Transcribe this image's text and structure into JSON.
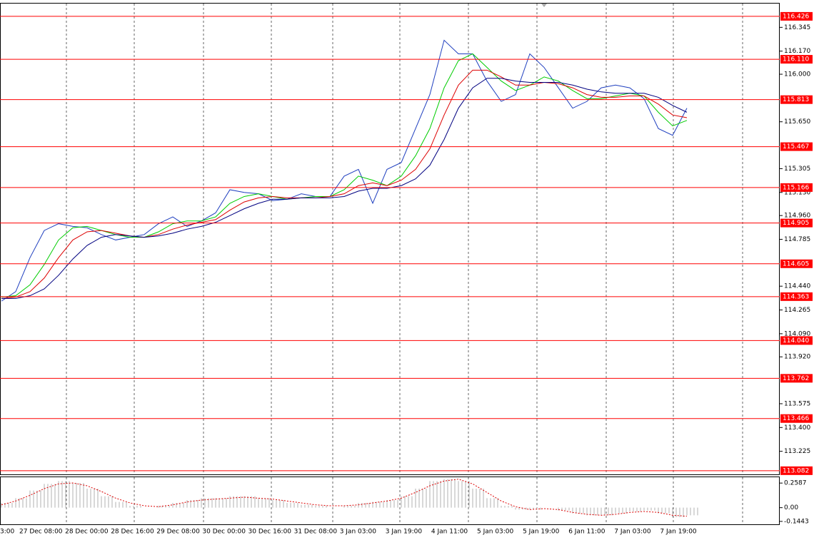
{
  "chart_data": [
    {
      "type": "line",
      "ylim": [
        113.055,
        116.52
      ],
      "yticks": [
        116.345,
        {
          "value": 116.17,
          "label": "116.170"
        },
        {
          "value": 116.0,
          "label": "116.000"
        },
        {
          "value": 115.65,
          "label": "115.650"
        },
        115.305,
        {
          "value": 115.13,
          "label": "115.130"
        },
        {
          "value": 114.96,
          "label": "114.960"
        },
        114.785,
        {
          "value": 114.44,
          "label": "114.440"
        },
        114.265,
        {
          "value": 114.09,
          "label": "114.090"
        },
        {
          "value": 113.92,
          "label": "113.920"
        },
        113.575,
        {
          "value": 113.4,
          "label": "113.400"
        },
        113.225
      ],
      "levels": [
        116.426,
        {
          "value": 116.11,
          "label": "116.110"
        },
        115.813,
        115.467,
        115.166,
        114.905,
        114.605,
        114.363,
        {
          "value": 114.04,
          "label": "114.040"
        },
        113.762,
        113.466,
        113.082
      ],
      "level_color": "#ff0000",
      "xticks": [
        "3:00",
        "27 Dec 08:00",
        "28 Dec 00:00",
        "28 Dec 16:00",
        "29 Dec 08:00",
        "30 Dec 00:00",
        "30 Dec 16:00",
        "31 Dec 08:00",
        "3 Jan 03:00",
        "3 Jan 19:00",
        "4 Jan 11:00",
        "5 Jan 03:00",
        "5 Jan 19:00",
        "6 Jan 11:00",
        "7 Jan 03:00",
        "7 Jan 19:00"
      ],
      "grid": true,
      "series": [
        {
          "color": "#1f3fbf",
          "values": [
            114.33,
            114.4,
            114.65,
            114.85,
            114.9,
            114.88,
            114.87,
            114.82,
            114.78,
            114.8,
            114.82,
            114.9,
            114.95,
            114.88,
            114.92,
            114.98,
            115.15,
            115.13,
            115.12,
            115.07,
            115.08,
            115.12,
            115.1,
            115.1,
            115.25,
            115.3,
            115.05,
            115.3,
            115.35,
            115.6,
            115.85,
            116.25,
            116.15,
            116.15,
            115.95,
            115.8,
            115.85,
            116.15,
            116.05,
            115.9,
            115.75,
            115.8,
            115.9,
            115.92,
            115.9,
            115.82,
            115.6,
            115.55,
            115.75
          ]
        },
        {
          "color": "#00cc00",
          "values": [
            114.36,
            114.37,
            114.45,
            114.6,
            114.78,
            114.87,
            114.88,
            114.85,
            114.82,
            114.8,
            114.8,
            114.84,
            114.9,
            114.92,
            114.92,
            114.95,
            115.05,
            115.1,
            115.12,
            115.1,
            115.08,
            115.09,
            115.1,
            115.1,
            115.15,
            115.25,
            115.22,
            115.18,
            115.25,
            115.4,
            115.6,
            115.9,
            116.1,
            116.15,
            116.05,
            115.95,
            115.88,
            115.92,
            115.98,
            115.95,
            115.88,
            115.82,
            115.82,
            115.84,
            115.86,
            115.84,
            115.72,
            115.62,
            115.66
          ]
        },
        {
          "color": "#dd0000",
          "values": [
            114.35,
            114.36,
            114.4,
            114.5,
            114.65,
            114.78,
            114.84,
            114.85,
            114.83,
            114.81,
            114.8,
            114.82,
            114.86,
            114.89,
            114.91,
            114.93,
            115.0,
            115.06,
            115.09,
            115.1,
            115.09,
            115.09,
            115.09,
            115.1,
            115.12,
            115.18,
            115.2,
            115.18,
            115.22,
            115.3,
            115.45,
            115.7,
            115.92,
            116.03,
            116.03,
            115.98,
            115.92,
            115.92,
            115.94,
            115.93,
            115.9,
            115.85,
            115.83,
            115.83,
            115.84,
            115.84,
            115.78,
            115.7,
            115.68
          ]
        },
        {
          "color": "#000080",
          "values": [
            114.35,
            114.35,
            114.37,
            114.42,
            114.52,
            114.64,
            114.74,
            114.8,
            114.82,
            114.81,
            114.8,
            114.81,
            114.83,
            114.86,
            114.88,
            114.91,
            114.96,
            115.01,
            115.05,
            115.08,
            115.08,
            115.09,
            115.09,
            115.09,
            115.1,
            115.14,
            115.16,
            115.16,
            115.18,
            115.23,
            115.33,
            115.52,
            115.75,
            115.9,
            115.97,
            115.97,
            115.95,
            115.94,
            115.94,
            115.94,
            115.92,
            115.89,
            115.87,
            115.86,
            115.86,
            115.86,
            115.83,
            115.77,
            115.72
          ]
        }
      ]
    },
    {
      "type": "bar",
      "ylim": [
        -0.175,
        0.32
      ],
      "yticks": [
        0.2587,
        {
          "value": 0,
          "label": "0.00"
        },
        -0.1443
      ],
      "series": [
        {
          "color": "#b0b0b0",
          "values": [
            0.05,
            0.1,
            0.18,
            0.25,
            0.28,
            0.26,
            0.2,
            0.12,
            0.06,
            0.02,
            0.0,
            0.02,
            0.05,
            0.08,
            0.1,
            0.1,
            0.12,
            0.12,
            0.1,
            0.08,
            0.05,
            0.03,
            0.02,
            0.0,
            0.02,
            0.05,
            0.06,
            0.08,
            0.12,
            0.2,
            0.28,
            0.3,
            0.28,
            0.2,
            0.1,
            0.02,
            -0.02,
            -0.02,
            0.0,
            -0.03,
            -0.06,
            -0.08,
            -0.08,
            -0.06,
            -0.04,
            -0.03,
            -0.06,
            -0.1,
            -0.08
          ]
        },
        {
          "color": "#dd0000",
          "values": [
            0.03,
            0.07,
            0.13,
            0.2,
            0.25,
            0.26,
            0.23,
            0.17,
            0.1,
            0.05,
            0.02,
            0.01,
            0.03,
            0.06,
            0.08,
            0.09,
            0.1,
            0.11,
            0.1,
            0.09,
            0.07,
            0.05,
            0.03,
            0.02,
            0.02,
            0.03,
            0.05,
            0.07,
            0.1,
            0.16,
            0.23,
            0.28,
            0.3,
            0.25,
            0.16,
            0.07,
            0.01,
            -0.02,
            -0.01,
            -0.02,
            -0.05,
            -0.07,
            -0.08,
            -0.07,
            -0.05,
            -0.04,
            -0.05,
            -0.08,
            -0.09
          ]
        }
      ]
    }
  ]
}
